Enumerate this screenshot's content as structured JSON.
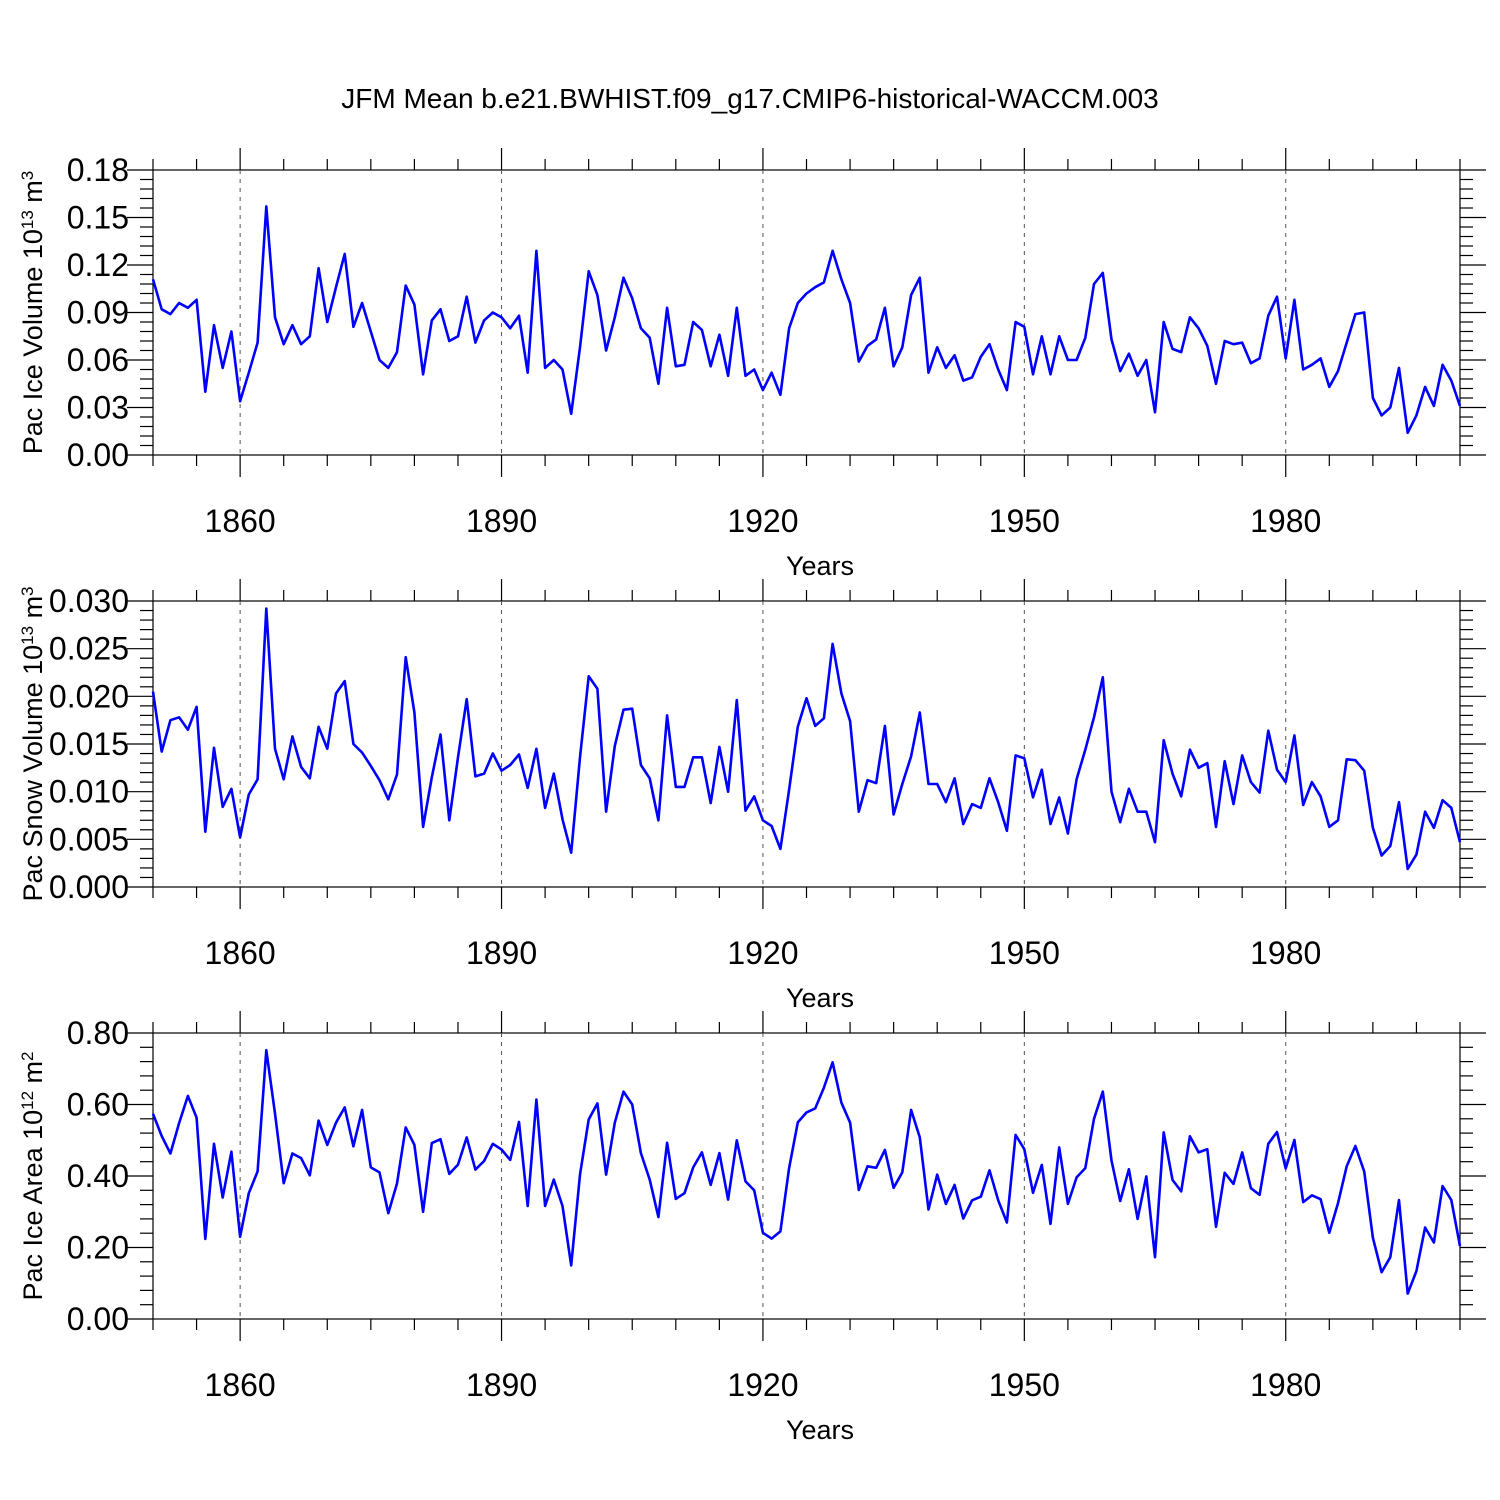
{
  "title": "JFM Mean b.e21.BWHIST.f09_g17.CMIP6-historical-WACCM.003",
  "chart_data": [
    {
      "type": "line",
      "ylabel_main": "Pac Ice Volume 10",
      "ylabel_exp": "13",
      "ylabel_unit": " m",
      "ylabel_unit_exp": "3",
      "xlabel": "Years",
      "xlim": [
        1850,
        2000
      ],
      "ylim": [
        0,
        0.18
      ],
      "xticks": [
        1860,
        1890,
        1920,
        1950,
        1980
      ],
      "xtick_labels": [
        "1860",
        "1890",
        "1920",
        "1950",
        "1980"
      ],
      "yticks": [
        0,
        0.03,
        0.06,
        0.09,
        0.12,
        0.15,
        0.18
      ],
      "ytick_labels": [
        "0.00",
        "0.03",
        "0.06",
        "0.09",
        "0.12",
        "0.15",
        "0.18"
      ],
      "grid": "vertical dashed at major x ticks",
      "color": "#0000ff",
      "x_start": 1850,
      "values": [
        0.111,
        0.092,
        0.089,
        0.096,
        0.093,
        0.098,
        0.04,
        0.082,
        0.055,
        0.078,
        0.034,
        0.052,
        0.071,
        0.157,
        0.087,
        0.07,
        0.082,
        0.07,
        0.075,
        0.118,
        0.084,
        0.106,
        0.127,
        0.081,
        0.096,
        0.078,
        0.06,
        0.055,
        0.065,
        0.107,
        0.095,
        0.051,
        0.085,
        0.092,
        0.072,
        0.075,
        0.1,
        0.071,
        0.085,
        0.09,
        0.087,
        0.08,
        0.088,
        0.052,
        0.129,
        0.055,
        0.06,
        0.054,
        0.026,
        0.068,
        0.116,
        0.101,
        0.066,
        0.087,
        0.112,
        0.099,
        0.08,
        0.074,
        0.045,
        0.093,
        0.056,
        0.057,
        0.084,
        0.079,
        0.056,
        0.076,
        0.05,
        0.093,
        0.05,
        0.054,
        0.041,
        0.052,
        0.038,
        0.08,
        0.096,
        0.102,
        0.106,
        0.109,
        0.129,
        0.111,
        0.096,
        0.059,
        0.069,
        0.073,
        0.093,
        0.056,
        0.068,
        0.101,
        0.112,
        0.052,
        0.068,
        0.055,
        0.063,
        0.047,
        0.049,
        0.062,
        0.07,
        0.054,
        0.041,
        0.084,
        0.081,
        0.051,
        0.075,
        0.051,
        0.075,
        0.06,
        0.06,
        0.074,
        0.108,
        0.115,
        0.073,
        0.053,
        0.064,
        0.05,
        0.06,
        0.027,
        0.084,
        0.067,
        0.065,
        0.087,
        0.08,
        0.069,
        0.045,
        0.072,
        0.07,
        0.071,
        0.058,
        0.061,
        0.088,
        0.1,
        0.061,
        0.098,
        0.054,
        0.057,
        0.061,
        0.043,
        0.053,
        0.071,
        0.089,
        0.09,
        0.036,
        0.025,
        0.03,
        0.055,
        0.014,
        0.025,
        0.043,
        0.031,
        0.057,
        0.047,
        0.031
      ]
    },
    {
      "type": "line",
      "ylabel_main": "Pac Snow Volume 10",
      "ylabel_exp": "13",
      "ylabel_unit": " m",
      "ylabel_unit_exp": "3",
      "xlabel": "Years",
      "xlim": [
        1850,
        2000
      ],
      "ylim": [
        0,
        0.03
      ],
      "xticks": [
        1860,
        1890,
        1920,
        1950,
        1980
      ],
      "xtick_labels": [
        "1860",
        "1890",
        "1920",
        "1950",
        "1980"
      ],
      "yticks": [
        0,
        0.005,
        0.01,
        0.015,
        0.02,
        0.025,
        0.03
      ],
      "ytick_labels": [
        "0.000",
        "0.005",
        "0.010",
        "0.015",
        "0.020",
        "0.025",
        "0.030"
      ],
      "grid": "vertical dashed at major x ticks",
      "color": "#0000ff",
      "x_start": 1850,
      "values": [
        0.0205,
        0.0142,
        0.0175,
        0.0178,
        0.0165,
        0.0189,
        0.0058,
        0.0146,
        0.0084,
        0.0103,
        0.0052,
        0.0097,
        0.0113,
        0.0292,
        0.0145,
        0.0113,
        0.0158,
        0.0126,
        0.0114,
        0.0168,
        0.0145,
        0.0203,
        0.0216,
        0.015,
        0.0141,
        0.0127,
        0.0112,
        0.0092,
        0.0118,
        0.0241,
        0.0183,
        0.0063,
        0.0115,
        0.016,
        0.007,
        0.0136,
        0.0197,
        0.0116,
        0.0119,
        0.014,
        0.0122,
        0.0128,
        0.0139,
        0.0104,
        0.0145,
        0.0083,
        0.0119,
        0.0071,
        0.0036,
        0.0136,
        0.0221,
        0.0208,
        0.0079,
        0.0148,
        0.0186,
        0.0187,
        0.0128,
        0.0114,
        0.007,
        0.018,
        0.0105,
        0.0105,
        0.0136,
        0.0136,
        0.0088,
        0.0147,
        0.01,
        0.0196,
        0.008,
        0.0095,
        0.007,
        0.0064,
        0.004,
        0.0102,
        0.0168,
        0.0198,
        0.0169,
        0.0177,
        0.0255,
        0.0203,
        0.0174,
        0.0079,
        0.0112,
        0.0109,
        0.0169,
        0.0076,
        0.0108,
        0.0137,
        0.0183,
        0.0108,
        0.0108,
        0.0089,
        0.0114,
        0.0066,
        0.0087,
        0.0083,
        0.0114,
        0.0089,
        0.0059,
        0.0138,
        0.0135,
        0.0094,
        0.0123,
        0.0066,
        0.0094,
        0.0056,
        0.0113,
        0.0144,
        0.0178,
        0.022,
        0.01,
        0.0068,
        0.0103,
        0.0079,
        0.0079,
        0.0047,
        0.0154,
        0.0119,
        0.0095,
        0.0144,
        0.0125,
        0.013,
        0.0063,
        0.0132,
        0.0087,
        0.0138,
        0.011,
        0.0099,
        0.0164,
        0.0123,
        0.011,
        0.0159,
        0.0086,
        0.011,
        0.0095,
        0.0063,
        0.007,
        0.0134,
        0.0133,
        0.0122,
        0.0062,
        0.0033,
        0.0043,
        0.0089,
        0.0019,
        0.0034,
        0.0079,
        0.0062,
        0.0091,
        0.0083,
        0.0047
      ]
    },
    {
      "type": "line",
      "ylabel_main": "Pac Ice Area 10",
      "ylabel_exp": "12",
      "ylabel_unit": " m",
      "ylabel_unit_exp": "2",
      "xlabel": "Years",
      "xlim": [
        1850,
        2000
      ],
      "ylim": [
        0,
        0.8
      ],
      "xticks": [
        1860,
        1890,
        1920,
        1950,
        1980
      ],
      "xtick_labels": [
        "1860",
        "1890",
        "1920",
        "1950",
        "1980"
      ],
      "yticks": [
        0,
        0.2,
        0.4,
        0.6,
        0.8
      ],
      "ytick_labels": [
        "0.00",
        "0.20",
        "0.40",
        "0.60",
        "0.80"
      ],
      "grid": "vertical dashed at major x ticks",
      "color": "#0000ff",
      "x_start": 1850,
      "values": [
        0.574,
        0.512,
        0.463,
        0.548,
        0.624,
        0.563,
        0.224,
        0.49,
        0.34,
        0.468,
        0.23,
        0.352,
        0.413,
        0.752,
        0.575,
        0.38,
        0.463,
        0.45,
        0.402,
        0.555,
        0.487,
        0.549,
        0.592,
        0.483,
        0.585,
        0.424,
        0.41,
        0.296,
        0.379,
        0.536,
        0.487,
        0.3,
        0.492,
        0.503,
        0.406,
        0.432,
        0.508,
        0.418,
        0.442,
        0.49,
        0.474,
        0.445,
        0.551,
        0.316,
        0.614,
        0.316,
        0.39,
        0.316,
        0.15,
        0.404,
        0.558,
        0.603,
        0.404,
        0.549,
        0.636,
        0.6,
        0.464,
        0.39,
        0.285,
        0.493,
        0.336,
        0.352,
        0.424,
        0.466,
        0.375,
        0.464,
        0.334,
        0.5,
        0.385,
        0.36,
        0.241,
        0.225,
        0.245,
        0.422,
        0.55,
        0.578,
        0.589,
        0.647,
        0.718,
        0.605,
        0.549,
        0.361,
        0.427,
        0.423,
        0.473,
        0.367,
        0.41,
        0.585,
        0.508,
        0.306,
        0.404,
        0.322,
        0.375,
        0.281,
        0.332,
        0.342,
        0.416,
        0.332,
        0.27,
        0.515,
        0.475,
        0.353,
        0.431,
        0.266,
        0.48,
        0.322,
        0.396,
        0.422,
        0.56,
        0.636,
        0.443,
        0.33,
        0.419,
        0.28,
        0.399,
        0.173,
        0.522,
        0.389,
        0.357,
        0.511,
        0.466,
        0.475,
        0.258,
        0.409,
        0.378,
        0.466,
        0.366,
        0.347,
        0.49,
        0.523,
        0.421,
        0.501,
        0.327,
        0.346,
        0.335,
        0.241,
        0.324,
        0.427,
        0.484,
        0.413,
        0.227,
        0.131,
        0.173,
        0.333,
        0.071,
        0.134,
        0.256,
        0.214,
        0.372,
        0.333,
        0.204
      ]
    }
  ]
}
